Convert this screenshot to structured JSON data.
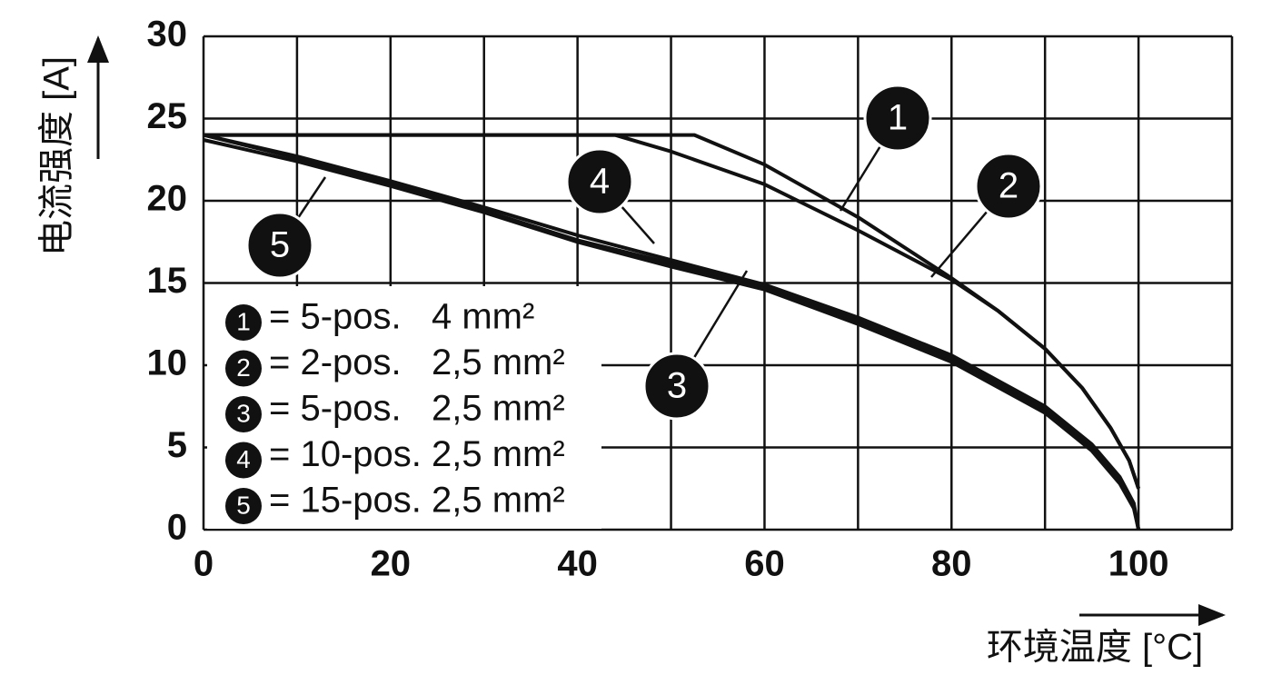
{
  "chart_data": {
    "type": "line",
    "xlabel": "环境温度 [°C]",
    "ylabel": "电流强度 [A]",
    "xlim": [
      0,
      110
    ],
    "ylim": [
      0,
      30
    ],
    "xticks": [
      0,
      20,
      40,
      60,
      80,
      100
    ],
    "xgrid": [
      0,
      10,
      20,
      30,
      40,
      50,
      60,
      70,
      80,
      90,
      100,
      110
    ],
    "yticks": [
      0,
      5,
      10,
      15,
      20,
      25,
      30
    ],
    "grid": true,
    "legend": "lower left",
    "series": [
      {
        "marker": "1",
        "name": "= 5-pos.   4 mm²",
        "color": "#111111",
        "x": [
          0,
          52.5,
          60,
          70,
          80,
          85,
          90,
          94,
          97,
          99,
          100
        ],
        "values": [
          24,
          24,
          22.2,
          19,
          15.3,
          13.3,
          11,
          8.6,
          6.2,
          4.2,
          2.5
        ]
      },
      {
        "marker": "2",
        "name": "= 2-pos.   2,5 mm²",
        "color": "#111111",
        "x": [
          0,
          44,
          50,
          60,
          70,
          80,
          85,
          90,
          94,
          97,
          99,
          100
        ],
        "values": [
          24,
          24,
          23,
          21,
          18.2,
          15.2,
          13.3,
          11,
          8.6,
          6.2,
          4.2,
          2.5
        ]
      },
      {
        "marker": "3",
        "name": "= 5-pos.   2,5 mm²",
        "color": "#111111",
        "x": [
          0,
          10,
          20,
          30,
          40,
          50,
          60,
          70,
          80,
          90,
          95,
          98,
          99.5,
          100
        ],
        "values": [
          24,
          22.6,
          21.1,
          19.4,
          17.6,
          16.2,
          14.8,
          12.7,
          10.4,
          7.3,
          5,
          3,
          1.5,
          0
        ]
      },
      {
        "marker": "4",
        "name": "= 10-pos. 2,5 mm²",
        "color": "#111111",
        "x": [
          0,
          10,
          20,
          30,
          40,
          50,
          60,
          70,
          80,
          90,
          95,
          98,
          99.5,
          100
        ],
        "values": [
          24,
          22.7,
          21.2,
          19.6,
          17.9,
          16.4,
          14.9,
          12.9,
          10.6,
          7.5,
          5.2,
          3.2,
          1.6,
          0
        ]
      },
      {
        "marker": "5",
        "name": "= 15-pos. 2,5 mm²",
        "color": "#111111",
        "x": [
          0,
          10,
          20,
          30,
          40,
          50,
          60,
          70,
          80,
          90,
          95,
          98,
          99.5,
          100
        ],
        "values": [
          23.7,
          22.4,
          20.9,
          19.3,
          17.5,
          16.0,
          14.6,
          12.5,
          10.2,
          7.1,
          4.8,
          2.8,
          1.3,
          0
        ]
      }
    ]
  }
}
